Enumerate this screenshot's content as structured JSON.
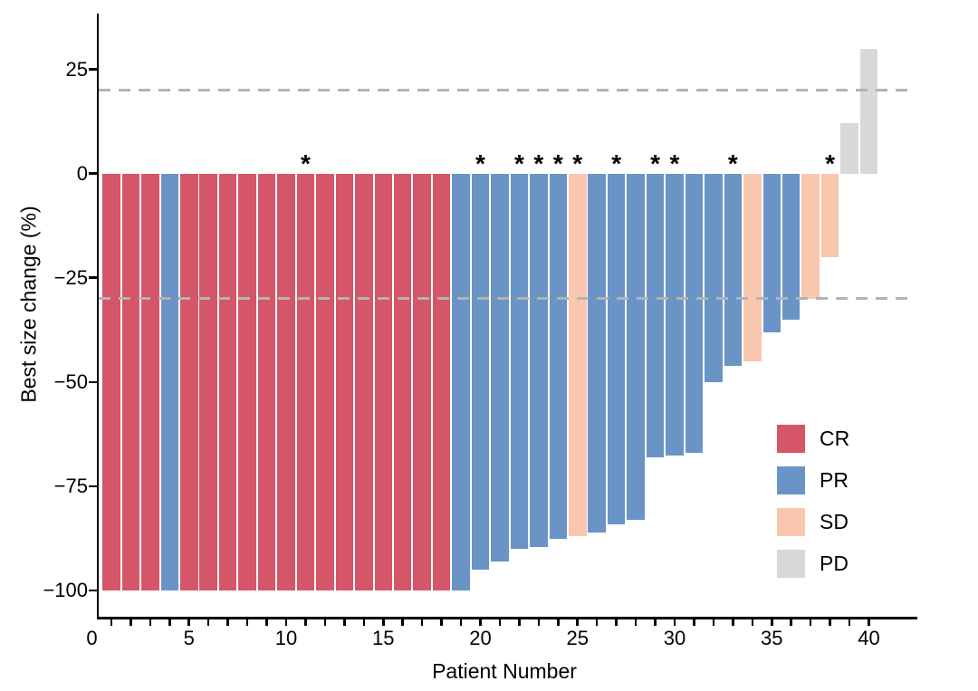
{
  "chart_data": {
    "type": "bar",
    "subtype": "waterfall-best-response",
    "title": "",
    "xlabel": "Patient Number",
    "ylabel": "Best size change (%)",
    "x_tick_labels": [
      0,
      5,
      10,
      15,
      20,
      25,
      30,
      35,
      40
    ],
    "x_minor_ticks_every": 1,
    "y_tick_labels": [
      25,
      0,
      -25,
      -50,
      -75,
      -100
    ],
    "ylim": [
      -106,
      35
    ],
    "xlim": [
      0,
      42
    ],
    "grid": false,
    "legend_position": "inside-right",
    "reference_lines": {
      "values": [
        20,
        -30
      ],
      "style": "dashed",
      "color": "#b3b3b3"
    },
    "groups": [
      {
        "name": "CR",
        "color": "#d55569"
      },
      {
        "name": "PR",
        "color": "#6a94c5"
      },
      {
        "name": "SD",
        "color": "#f9c7ad"
      },
      {
        "name": "PD",
        "color": "#d8d8d8"
      }
    ],
    "annotation_symbol": "*",
    "series": [
      {
        "patient": 1,
        "value": -100,
        "group": "CR",
        "asterisk": false
      },
      {
        "patient": 2,
        "value": -100,
        "group": "CR",
        "asterisk": false
      },
      {
        "patient": 3,
        "value": -100,
        "group": "CR",
        "asterisk": false
      },
      {
        "patient": 4,
        "value": -100,
        "group": "PR",
        "asterisk": false
      },
      {
        "patient": 5,
        "value": -100,
        "group": "CR",
        "asterisk": false
      },
      {
        "patient": 6,
        "value": -100,
        "group": "CR",
        "asterisk": false
      },
      {
        "patient": 7,
        "value": -100,
        "group": "CR",
        "asterisk": false
      },
      {
        "patient": 8,
        "value": -100,
        "group": "CR",
        "asterisk": false
      },
      {
        "patient": 9,
        "value": -100,
        "group": "CR",
        "asterisk": false
      },
      {
        "patient": 10,
        "value": -100,
        "group": "CR",
        "asterisk": false
      },
      {
        "patient": 11,
        "value": -100,
        "group": "CR",
        "asterisk": true
      },
      {
        "patient": 12,
        "value": -100,
        "group": "CR",
        "asterisk": false
      },
      {
        "patient": 13,
        "value": -100,
        "group": "CR",
        "asterisk": false
      },
      {
        "patient": 14,
        "value": -100,
        "group": "CR",
        "asterisk": false
      },
      {
        "patient": 15,
        "value": -100,
        "group": "CR",
        "asterisk": false
      },
      {
        "patient": 16,
        "value": -100,
        "group": "CR",
        "asterisk": false
      },
      {
        "patient": 17,
        "value": -100,
        "group": "CR",
        "asterisk": false
      },
      {
        "patient": 18,
        "value": -100,
        "group": "CR",
        "asterisk": false
      },
      {
        "patient": 19,
        "value": -100,
        "group": "PR",
        "asterisk": false
      },
      {
        "patient": 20,
        "value": -95,
        "group": "PR",
        "asterisk": true
      },
      {
        "patient": 21,
        "value": -93,
        "group": "PR",
        "asterisk": false
      },
      {
        "patient": 22,
        "value": -90,
        "group": "PR",
        "asterisk": true
      },
      {
        "patient": 23,
        "value": -89.5,
        "group": "PR",
        "asterisk": true
      },
      {
        "patient": 24,
        "value": -87.5,
        "group": "PR",
        "asterisk": true
      },
      {
        "patient": 25,
        "value": -87,
        "group": "SD",
        "asterisk": true
      },
      {
        "patient": 26,
        "value": -86,
        "group": "PR",
        "asterisk": false
      },
      {
        "patient": 27,
        "value": -84,
        "group": "PR",
        "asterisk": true
      },
      {
        "patient": 28,
        "value": -83,
        "group": "PR",
        "asterisk": false
      },
      {
        "patient": 29,
        "value": -68,
        "group": "PR",
        "asterisk": true
      },
      {
        "patient": 30,
        "value": -67.5,
        "group": "PR",
        "asterisk": true
      },
      {
        "patient": 31,
        "value": -67,
        "group": "PR",
        "asterisk": false
      },
      {
        "patient": 32,
        "value": -50,
        "group": "PR",
        "asterisk": false
      },
      {
        "patient": 33,
        "value": -46,
        "group": "PR",
        "asterisk": true
      },
      {
        "patient": 34,
        "value": -45,
        "group": "SD",
        "asterisk": false
      },
      {
        "patient": 35,
        "value": -38,
        "group": "PR",
        "asterisk": false
      },
      {
        "patient": 36,
        "value": -35,
        "group": "PR",
        "asterisk": false
      },
      {
        "patient": 37,
        "value": -30,
        "group": "SD",
        "asterisk": false
      },
      {
        "patient": 38,
        "value": -20,
        "group": "SD",
        "asterisk": true
      },
      {
        "patient": 39,
        "value": 12,
        "group": "PD",
        "asterisk": false
      },
      {
        "patient": 40,
        "value": 30,
        "group": "PD",
        "asterisk": false
      }
    ]
  },
  "colors": {
    "axis": "#000000",
    "text": "#000000",
    "background": "#ffffff",
    "reference_line": "#b3b3b3"
  }
}
